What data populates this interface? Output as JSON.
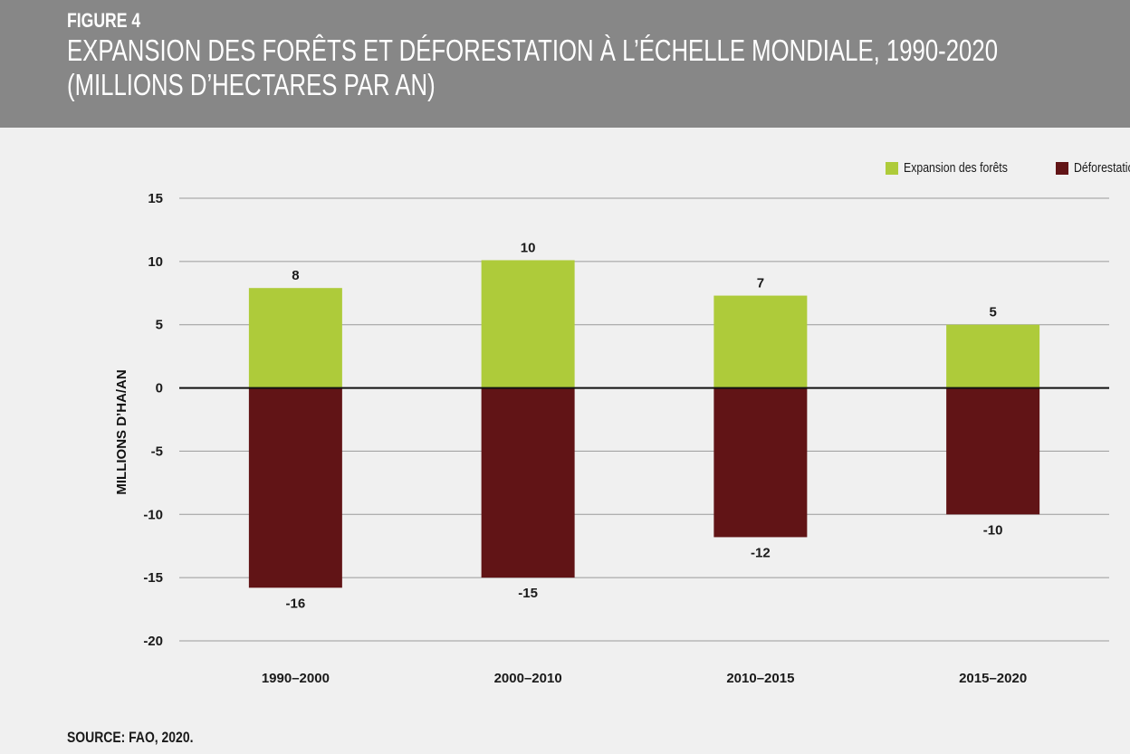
{
  "header": {
    "figure_label": "FIGURE 4",
    "title_line1": "EXPANSION DES FORÊTS ET DÉFORESTATION À L’ÉCHELLE MONDIALE, 1990-2020",
    "title_line2": "(MILLIONS D’HECTARES PAR AN)"
  },
  "source": "SOURCE: FAO, 2020.",
  "colors": {
    "header_bg": "#878787",
    "expansion": "#aecb3a",
    "deforestation": "#611416",
    "background": "#f0f0f0"
  },
  "chart_data": {
    "type": "bar",
    "stacked": "diverging",
    "categories": [
      "1990–2000",
      "2000–2010",
      "2010–2015",
      "2015–2020"
    ],
    "series": [
      {
        "name": "Expansion des forêts",
        "values": [
          7.9,
          10.1,
          7.3,
          5.0
        ],
        "labels": [
          "8",
          "10",
          "7",
          "5"
        ]
      },
      {
        "name": "Déforestation",
        "values": [
          -15.8,
          -15.0,
          -11.8,
          -10.0
        ],
        "labels": [
          "-16",
          "-15",
          "-12",
          "-10"
        ]
      }
    ],
    "ylabel": "MILLIONS D’HA/AN",
    "xlabel": "",
    "ylim": [
      -20,
      15
    ],
    "yticks": [
      15,
      10,
      5,
      0,
      -5,
      -10,
      -15,
      -20
    ],
    "grid": true,
    "legend_position": "top-right"
  }
}
